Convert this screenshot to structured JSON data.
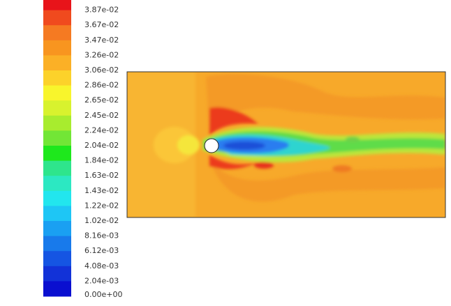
{
  "colorbar": {
    "labels": [
      "3.87e-02",
      "3.67e-02",
      "3.47e-02",
      "3.26e-02",
      "3.06e-02",
      "2.86e-02",
      "2.65e-02",
      "2.45e-02",
      "2.24e-02",
      "2.04e-02",
      "1.84e-02",
      "1.63e-02",
      "1.43e-02",
      "1.22e-02",
      "1.02e-02",
      "8.16e-03",
      "6.12e-03",
      "4.08e-03",
      "2.04e-03",
      "0.00e+00"
    ]
  }
}
